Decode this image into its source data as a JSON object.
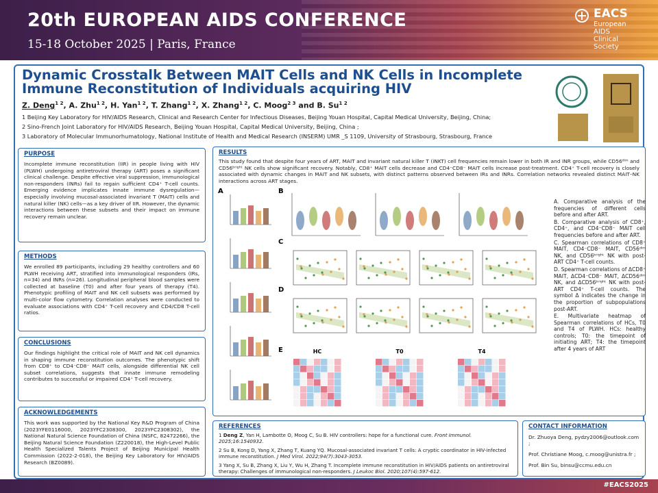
{
  "header": {
    "conference": "20th EUROPEAN AIDS CONFERENCE",
    "dates": "15-18 October 2025 | Paris, France",
    "society": {
      "name": "EACS",
      "full": [
        "European",
        "AIDS",
        "Clinical",
        "Society"
      ]
    }
  },
  "title": "Dynamic Crosstalk Between MAIT Cells and NK Cells in Incomplete Immune Reconstitution of Individuals acquiring HIV",
  "authors": [
    {
      "name": "Z. Deng",
      "sup": "1 2"
    },
    {
      "name": "A. Zhu",
      "sup": "1 2"
    },
    {
      "name": "H. Yan",
      "sup": "1 2"
    },
    {
      "name": "T. Zhang",
      "sup": "1 2"
    },
    {
      "name": "X. Zhang",
      "sup": "1 2"
    },
    {
      "name": "C. Moog",
      "sup": "2 3"
    },
    {
      "name": "B. Su",
      "sup": "1 2"
    }
  ],
  "author_connector": "and",
  "affiliations": [
    "1 Beijing Key Laboratory for HIV/AIDS Research, Clinical and Research Center for Infectious Diseases, Beijing Youan Hospital, Capital Medical University, Beijing, China;",
    "2 Sino-French Joint Laboratory for HIV/AIDS Research, Beijing Youan Hospital, Capital Medical University, Beijing, China ;",
    "3 Laboratory of Molecular Immunorhumatology, National Institute of Health and Medical Research (INSERM) UMR _S 1109, University of Strasbourg, Strasbourg, France"
  ],
  "purpose": {
    "heading": "PURPOSE",
    "text": "Incomplete immune reconstitution (IIR) in people living with HIV (PLWH) undergoing antiretroviral therapy (ART) poses a significant clinical challenge. Despite effective viral suppression, immunological non-responders (INRs) fail to regain sufficient CD4⁺ T-cell counts. Emerging evidence implicates innate immune dysregulation—especially involving mucosal-associated invariant T (MAIT) cells and natural killer (NK) cells—as a key driver of IIR. However, the dynamic interactions between these subsets and their impact on immune recovery remain unclear."
  },
  "methods": {
    "heading": "METHODS",
    "text": "We enrolled 89 participants, including 29 healthy controllers and 60 PLWH receiving ART, stratified into immunological responders (IRs, n=34) and INRs (n=26). Longitudinal peripheral blood samples were collected at baseline (T0) and after four years of therapy (T4). Phenotypic profiling of MAIT and NK cell subsets was performed by multi-color flow cytometry. Correlation analyses were conducted to evaluate associations with CD4⁺ T-cell recovery and CD4/CD8 T-cell ratios."
  },
  "conclusions": {
    "heading": "CONCLUSIONS",
    "text": "Our findings highlight the critical role of MAIT and NK cell dynamics in shaping immune reconstitution outcomes. The phenotypic shift from CD8⁺ to CD4⁻CD8⁻ MAIT cells, alongside differential NK cell subset correlations, suggests that innate immune remodeling contributes to successful or impaired CD4⁺ T-cell recovery."
  },
  "acknowledgements": {
    "heading": "ACKNOWLEDGEMENTS",
    "text": "This work was supported by the National Key R&D Program of China (2023YFE0116000, 2023YFC2308300, 2023YFC2308302), the National Natural Science Foundation of China (NSFC, 82472266), the Beijing Natural Science Foundation (Z220018), the High-Level Public Health Specialized Talents Project of Beijing Municipal Health Commission (2022-2-018), the Beijing Key Laboratory for HIV/AIDS Research (BZ0089)."
  },
  "results": {
    "heading": "RESULTS",
    "text": "This study found that despite four years of ART, MAIT and invariant natural killer T (iNKT) cell frequencies remain lower in both IR and INR groups, while CD56ᵈⁱᵐ and CD56ᵇʳⁱᵍʰᵗ NK cells show significant recovery. Notably, CD8⁺ MAIT cells decrease and CD4⁻CD8⁻ MAIT cells increase post-treatment. CD4⁺ T-cell recovery is closely associated with dynamic changes in MAIT and NK subsets, with distinct patterns observed between IRs and INRs. Correlation networks revealed distinct MAIT–NK interactions across ART stages.",
    "panels": [
      "A",
      "B",
      "C",
      "D",
      "E"
    ],
    "heatmap_groups": [
      "HC",
      "T0",
      "T4"
    ],
    "figure_legend": [
      "A. Comparative analysis of the frequencies of different cells before and after ART.",
      "B. Comparative analysis of CD8⁺, CD4⁺, and CD4⁻CD8⁻ MAIT cell frequencies before and after ART.",
      "C. Spearman correlations of CD8⁺ MAIT, CD4⁻CD8⁻ MAIT, CD56ᵈⁱᵐ NK, and CD56ᵇʳⁱᵍʰᵗ NK with post-ART CD4⁺ T-cell counts.",
      "D. Spearman correlations of ΔCD8⁺ MAIT, ΔCD4⁻CD8⁻ MAIT, ΔCD56ᵈⁱᵐ NK, and ΔCD56ᵇʳⁱᵍʰᵗ NK with post-ART CD4⁺ T-cell counts. The symbol Δ indicates the change in the proportion of subpopulations post-ART.",
      "E. Multivariate heatmap of Spearman correlations of HCs, T0 and T4 of PLWH. HCs: healthy controls; T0: the timepoint of initiating ART; T4: the timepoint after 4 years of ART"
    ]
  },
  "references": {
    "heading": "REFERENCES",
    "items": [
      {
        "number": "1",
        "lead": "Deng Z",
        "text": ", Yan H, Lambotte O, Moog C, Su B. HIV controllers: hope for a functional cure. ",
        "journal": "Front Immunol. 2025;16:1540932."
      },
      {
        "number": "2",
        "lead": "",
        "text": "Su B, Kong D, Yang X, Zhang T, Kuang YQ. Mucosal-associated invariant T cells: A cryptic coordinator in HIV-infected immune reconstitution. ",
        "journal": "J Med Virol. 2022;94(7):3043-3053."
      },
      {
        "number": "3",
        "lead": "",
        "text": "Yang X, Su B, Zhang X, Liu Y, Wu H, Zhang T. Incomplete immune reconstitution in HIV/AIDS patients on antiretroviral therapy: Challenges of immunological non-responders. ",
        "journal": "J Leukoc Biol. 2020;107(4):597-612."
      }
    ]
  },
  "contact": {
    "heading": "CONTACT INFORMATION",
    "items": [
      "Dr. Zhuoya Deng, pydzy2006@outlook.com ;",
      "Prof. Christiane Moog, c.moog@unistra.fr ;",
      "Prof. Bin Su, binsu@ccmu.edu.cn"
    ]
  },
  "footer": "#EACS2025"
}
